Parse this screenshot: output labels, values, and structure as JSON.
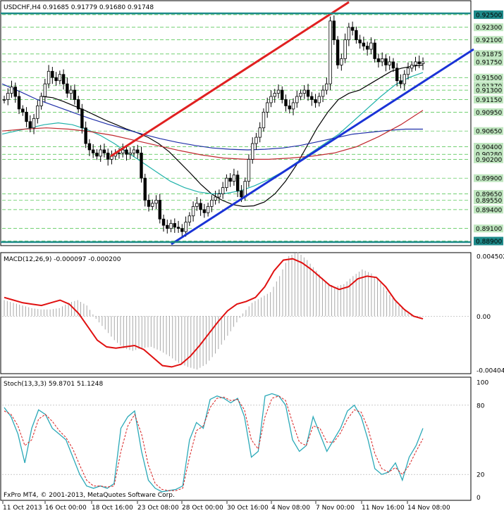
{
  "chart_data": [
    {
      "type": "candlestick",
      "header": "USDCHF,H4  0.91685 0.91779 0.91680 0.91748",
      "symbol": "USDCHF",
      "timeframe": "H4",
      "ohlc_last": [
        0.91685,
        0.91779,
        0.9168,
        0.91748
      ],
      "ylim": [
        0.8885,
        0.927
      ],
      "y_ticks": [
        "0.92500",
        "0.92300",
        "0.92100",
        "0.91875",
        "0.91750",
        "0.91500",
        "0.91370",
        "0.91300",
        "0.91150",
        "0.90950",
        "0.90650",
        "0.90400",
        "0.90280",
        "0.90200",
        "0.89900",
        "0.89650",
        "0.89550",
        "0.89400",
        "0.89100",
        "0.88900"
      ],
      "highlighted_levels": [
        0.925,
        0.889
      ],
      "x_ticks": [
        "11 Oct 2013",
        "16 Oct 00:00",
        "18 Oct 16:00",
        "23 Oct 08:00",
        "28 Oct 00:00",
        "30 Oct 16:00",
        "4 Nov 08:00",
        "7 Nov 00:00",
        "11 Nov 16:00",
        "14 Nov 08:00"
      ],
      "close_series": [
        0.9115,
        0.9125,
        0.9135,
        0.912,
        0.91,
        0.9095,
        0.908,
        0.907,
        0.9085,
        0.9105,
        0.912,
        0.914,
        0.916,
        0.915,
        0.9145,
        0.9155,
        0.914,
        0.9125,
        0.913,
        0.9115,
        0.91,
        0.907,
        0.9045,
        0.9035,
        0.903,
        0.9025,
        0.9035,
        0.903,
        0.902,
        0.9025,
        0.903,
        0.903,
        0.9035,
        0.9028,
        0.903,
        0.9035,
        0.903,
        0.899,
        0.8955,
        0.8945,
        0.895,
        0.8955,
        0.8925,
        0.8915,
        0.891,
        0.8918,
        0.8912,
        0.891,
        0.8905,
        0.892,
        0.893,
        0.8945,
        0.895,
        0.894,
        0.8935,
        0.8945,
        0.8955,
        0.896,
        0.8965,
        0.8975,
        0.899,
        0.8985,
        0.8995,
        0.897,
        0.896,
        0.8985,
        0.902,
        0.9045,
        0.9055,
        0.907,
        0.9095,
        0.911,
        0.912,
        0.9125,
        0.913,
        0.9115,
        0.9105,
        0.91,
        0.911,
        0.912,
        0.9125,
        0.913,
        0.912,
        0.9115,
        0.911,
        0.912,
        0.913,
        0.914,
        0.924,
        0.921,
        0.917,
        0.918,
        0.921,
        0.923,
        0.9225,
        0.921,
        0.9205,
        0.92,
        0.9195,
        0.9205,
        0.918,
        0.9175,
        0.918,
        0.917,
        0.9175,
        0.9165,
        0.9145,
        0.914,
        0.9155,
        0.9165,
        0.917,
        0.9175,
        0.9172,
        0.9175
      ],
      "moving_averages": [
        {
          "color": "#000000",
          "values": [
            0.912,
            0.9118,
            0.9112,
            0.9105,
            0.9098,
            0.909,
            0.9082,
            0.9075,
            0.9068,
            0.9062,
            0.9055,
            0.9045,
            0.9032,
            0.9015,
            0.8998,
            0.898,
            0.8965,
            0.8955,
            0.8948,
            0.8945,
            0.8946,
            0.8952,
            0.8965,
            0.8985,
            0.901,
            0.904,
            0.907,
            0.9095,
            0.9115,
            0.9125,
            0.913,
            0.914,
            0.915,
            0.916,
            0.9165,
            0.9168,
            0.917
          ]
        },
        {
          "color": "#20b2aa",
          "values": [
            0.906,
            0.9065,
            0.907,
            0.9075,
            0.9078,
            0.9075,
            0.9068,
            0.9058,
            0.9045,
            0.903,
            0.9015,
            0.9,
            0.8985,
            0.8975,
            0.8968,
            0.8965,
            0.8966,
            0.897,
            0.8978,
            0.8988,
            0.9,
            0.9015,
            0.903,
            0.9045,
            0.906,
            0.908,
            0.91,
            0.912,
            0.9138,
            0.915,
            0.9158
          ]
        },
        {
          "color": "#1f2fa8",
          "values": [
            0.914,
            0.9128,
            0.9115,
            0.9105,
            0.9095,
            0.9085,
            0.9076,
            0.9068,
            0.906,
            0.9053,
            0.9047,
            0.9042,
            0.9038,
            0.9036,
            0.9035,
            0.9036,
            0.9038,
            0.9042,
            0.9048,
            0.9054,
            0.906,
            0.9063,
            0.9066,
            0.9068,
            0.9068
          ]
        },
        {
          "color": "#c0282e",
          "values": [
            0.9065,
            0.9068,
            0.907,
            0.9068,
            0.9064,
            0.9058,
            0.905,
            0.9042,
            0.9034,
            0.9027,
            0.9022,
            0.902,
            0.902,
            0.9022,
            0.9025,
            0.903,
            0.904,
            0.9056,
            0.9075,
            0.9098
          ]
        }
      ]
    },
    {
      "type": "line",
      "header": "MACD(12,26,9) -0.000097 -0.000200",
      "y_ticks": [
        "0.004502",
        "0.00",
        "-0.00404"
      ],
      "ylim": [
        -0.00415,
        0.0046
      ],
      "histogram": [
        0.0012,
        0.001,
        0.0008,
        0.0006,
        0.0005,
        0.0005,
        0.0006,
        0.001,
        0.0012,
        0.0008,
        -0.0002,
        -0.001,
        -0.0018,
        -0.0024,
        -0.0026,
        -0.0024,
        -0.0023,
        -0.0026,
        -0.003,
        -0.0035,
        -0.0038,
        -0.004,
        -0.0036,
        -0.0028,
        -0.0018,
        -0.0008,
        0.0002,
        0.001,
        0.0014,
        0.0018,
        0.003,
        0.0045,
        0.0048,
        0.0042,
        0.0034,
        0.0026,
        0.0022,
        0.0024,
        0.003,
        0.0035,
        0.0032,
        0.0025,
        0.0016,
        0.0008,
        0.0002,
        -0.0001
      ],
      "signal": [
        0.0014,
        0.0012,
        0.001,
        0.0009,
        0.0008,
        0.001,
        0.0012,
        0.0009,
        0.0002,
        -0.0008,
        -0.0018,
        -0.0023,
        -0.0024,
        -0.0023,
        -0.0022,
        -0.0025,
        -0.0031,
        -0.0037,
        -0.0038,
        -0.0036,
        -0.003,
        -0.0022,
        -0.0013,
        -0.0004,
        0.0004,
        0.0009,
        0.0011,
        0.0014,
        0.0022,
        0.0034,
        0.0042,
        0.0043,
        0.004,
        0.0035,
        0.0029,
        0.0023,
        0.002,
        0.0022,
        0.0028,
        0.003,
        0.0029,
        0.0022,
        0.0012,
        0.0005,
        0.0,
        -0.0002
      ]
    },
    {
      "type": "line",
      "header": "Stoch(13,3,3) 59.8701 51.1248",
      "y_ticks": [
        "100",
        "80",
        "20",
        "0"
      ],
      "ylim": [
        0,
        100
      ],
      "k": [
        78,
        70,
        55,
        30,
        60,
        76,
        72,
        60,
        55,
        50,
        35,
        20,
        10,
        8,
        10,
        8,
        12,
        60,
        70,
        75,
        40,
        15,
        8,
        5,
        6,
        7,
        10,
        50,
        65,
        60,
        85,
        88,
        86,
        82,
        86,
        70,
        35,
        40,
        88,
        90,
        88,
        80,
        50,
        40,
        45,
        70,
        55,
        40,
        50,
        60,
        75,
        80,
        70,
        50,
        25,
        20,
        22,
        30,
        15,
        35,
        45,
        60
      ],
      "d": [
        75,
        72,
        62,
        45,
        50,
        68,
        72,
        66,
        58,
        52,
        42,
        28,
        15,
        10,
        10,
        9,
        10,
        40,
        62,
        72,
        55,
        28,
        12,
        7,
        6,
        6,
        8,
        35,
        58,
        62,
        78,
        86,
        87,
        84,
        85,
        76,
        50,
        42,
        70,
        86,
        88,
        84,
        65,
        48,
        45,
        62,
        60,
        48,
        48,
        56,
        68,
        76,
        74,
        60,
        38,
        25,
        22,
        26,
        20,
        28,
        40,
        51
      ]
    }
  ],
  "footer_text": "FxPro MT4, © 2001-2013, MetaQuotes Software Corp."
}
